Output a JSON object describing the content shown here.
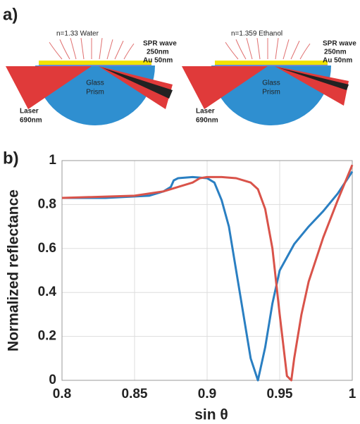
{
  "diagram": {
    "panel_label": "a)",
    "left": {
      "medium": "n=1.33 Water",
      "wave": "SPR wave",
      "thickness": "250nm",
      "gold": "Au 50nm",
      "laser": "Laser",
      "wavelength": "690nm",
      "prism1": "Glass",
      "prism2": "Prism"
    },
    "right": {
      "medium": "n=1.359 Ethanol",
      "wave": "SPR wave",
      "thickness": "250nm",
      "gold": "Au 50nm",
      "laser": "Laser",
      "wavelength": "690nm",
      "prism1": "Glass",
      "prism2": "Prism"
    }
  },
  "chart_data": {
    "type": "line",
    "panel_label": "b)",
    "xlabel": "sin θ",
    "ylabel": "Normalized reflectance",
    "xlim": [
      0.8,
      1
    ],
    "xticks": [
      0.8,
      0.85,
      0.9,
      0.95,
      1
    ],
    "ylim": [
      0,
      1
    ],
    "yticks": [
      0,
      0.2,
      0.4,
      0.6,
      0.8,
      1
    ],
    "grid": true,
    "series": [
      {
        "color": "#2a7fc2",
        "x": [
          0.8,
          0.83,
          0.86,
          0.87,
          0.875,
          0.877,
          0.88,
          0.89,
          0.9,
          0.905,
          0.91,
          0.915,
          0.92,
          0.925,
          0.93,
          0.935,
          0.94,
          0.945,
          0.95,
          0.96,
          0.97,
          0.98,
          0.99,
          1
        ],
        "values": [
          0.83,
          0.83,
          0.84,
          0.86,
          0.88,
          0.91,
          0.92,
          0.925,
          0.92,
          0.9,
          0.82,
          0.7,
          0.5,
          0.3,
          0.1,
          0.0,
          0.15,
          0.35,
          0.5,
          0.62,
          0.7,
          0.77,
          0.85,
          0.95
        ]
      },
      {
        "color": "#d9534a",
        "x": [
          0.8,
          0.85,
          0.87,
          0.88,
          0.89,
          0.895,
          0.9,
          0.91,
          0.92,
          0.93,
          0.935,
          0.94,
          0.945,
          0.95,
          0.955,
          0.958,
          0.96,
          0.965,
          0.97,
          0.98,
          0.99,
          1
        ],
        "values": [
          0.83,
          0.84,
          0.86,
          0.88,
          0.9,
          0.92,
          0.925,
          0.925,
          0.92,
          0.9,
          0.87,
          0.78,
          0.6,
          0.3,
          0.02,
          0.0,
          0.1,
          0.3,
          0.45,
          0.65,
          0.82,
          0.98
        ]
      }
    ]
  }
}
